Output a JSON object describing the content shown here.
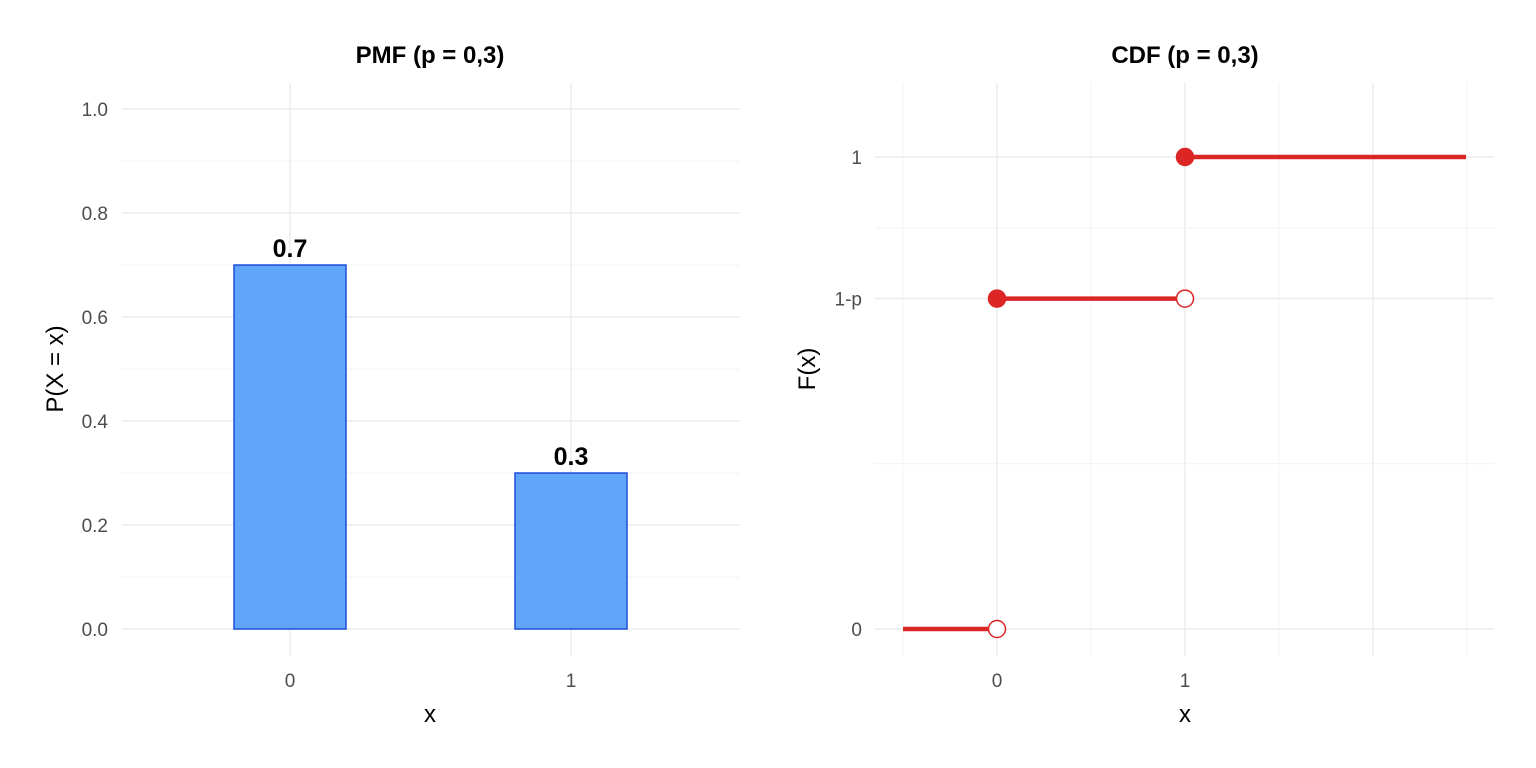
{
  "chart_data": [
    {
      "type": "bar",
      "title": "PMF  (p = 0,3)",
      "xlabel": "x",
      "ylabel": "P(X = x)",
      "categories": [
        "0",
        "1"
      ],
      "values": [
        0.7,
        0.3
      ],
      "value_labels": [
        "0.7",
        "0.3"
      ],
      "ylim": [
        0,
        1.0
      ],
      "yticks": [
        0.0,
        0.2,
        0.4,
        0.6,
        0.8,
        1.0
      ],
      "ytick_labels": [
        "0.0",
        "0.2",
        "0.4",
        "0.6",
        "0.8",
        "1.0"
      ],
      "grid": true,
      "colors": {
        "bar_fill": "#60a5fa",
        "bar_stroke": "#1d4ed8"
      }
    },
    {
      "type": "line",
      "title": "CDF  (p = 0,3)",
      "xlabel": "x",
      "ylabel": "F(x)",
      "segments": [
        {
          "x_start": -0.5,
          "x_end": 0,
          "y": 0,
          "start_closed": null,
          "end_open": true
        },
        {
          "x_start": 0,
          "x_end": 1,
          "y": 0.7,
          "start_closed": true,
          "end_open": true
        },
        {
          "x_start": 1,
          "x_end": 2.5,
          "y": 1,
          "start_closed": true,
          "end_open": null
        }
      ],
      "xticks": [
        0,
        1
      ],
      "xtick_labels": [
        "0",
        "1"
      ],
      "yticks": [
        0,
        0.7,
        1
      ],
      "ytick_labels": [
        "0",
        "1-p",
        "1"
      ],
      "xlim": [
        -0.5,
        2.5
      ],
      "ylim": [
        0,
        1
      ],
      "grid": true,
      "colors": {
        "line": "#dc2626"
      }
    }
  ]
}
